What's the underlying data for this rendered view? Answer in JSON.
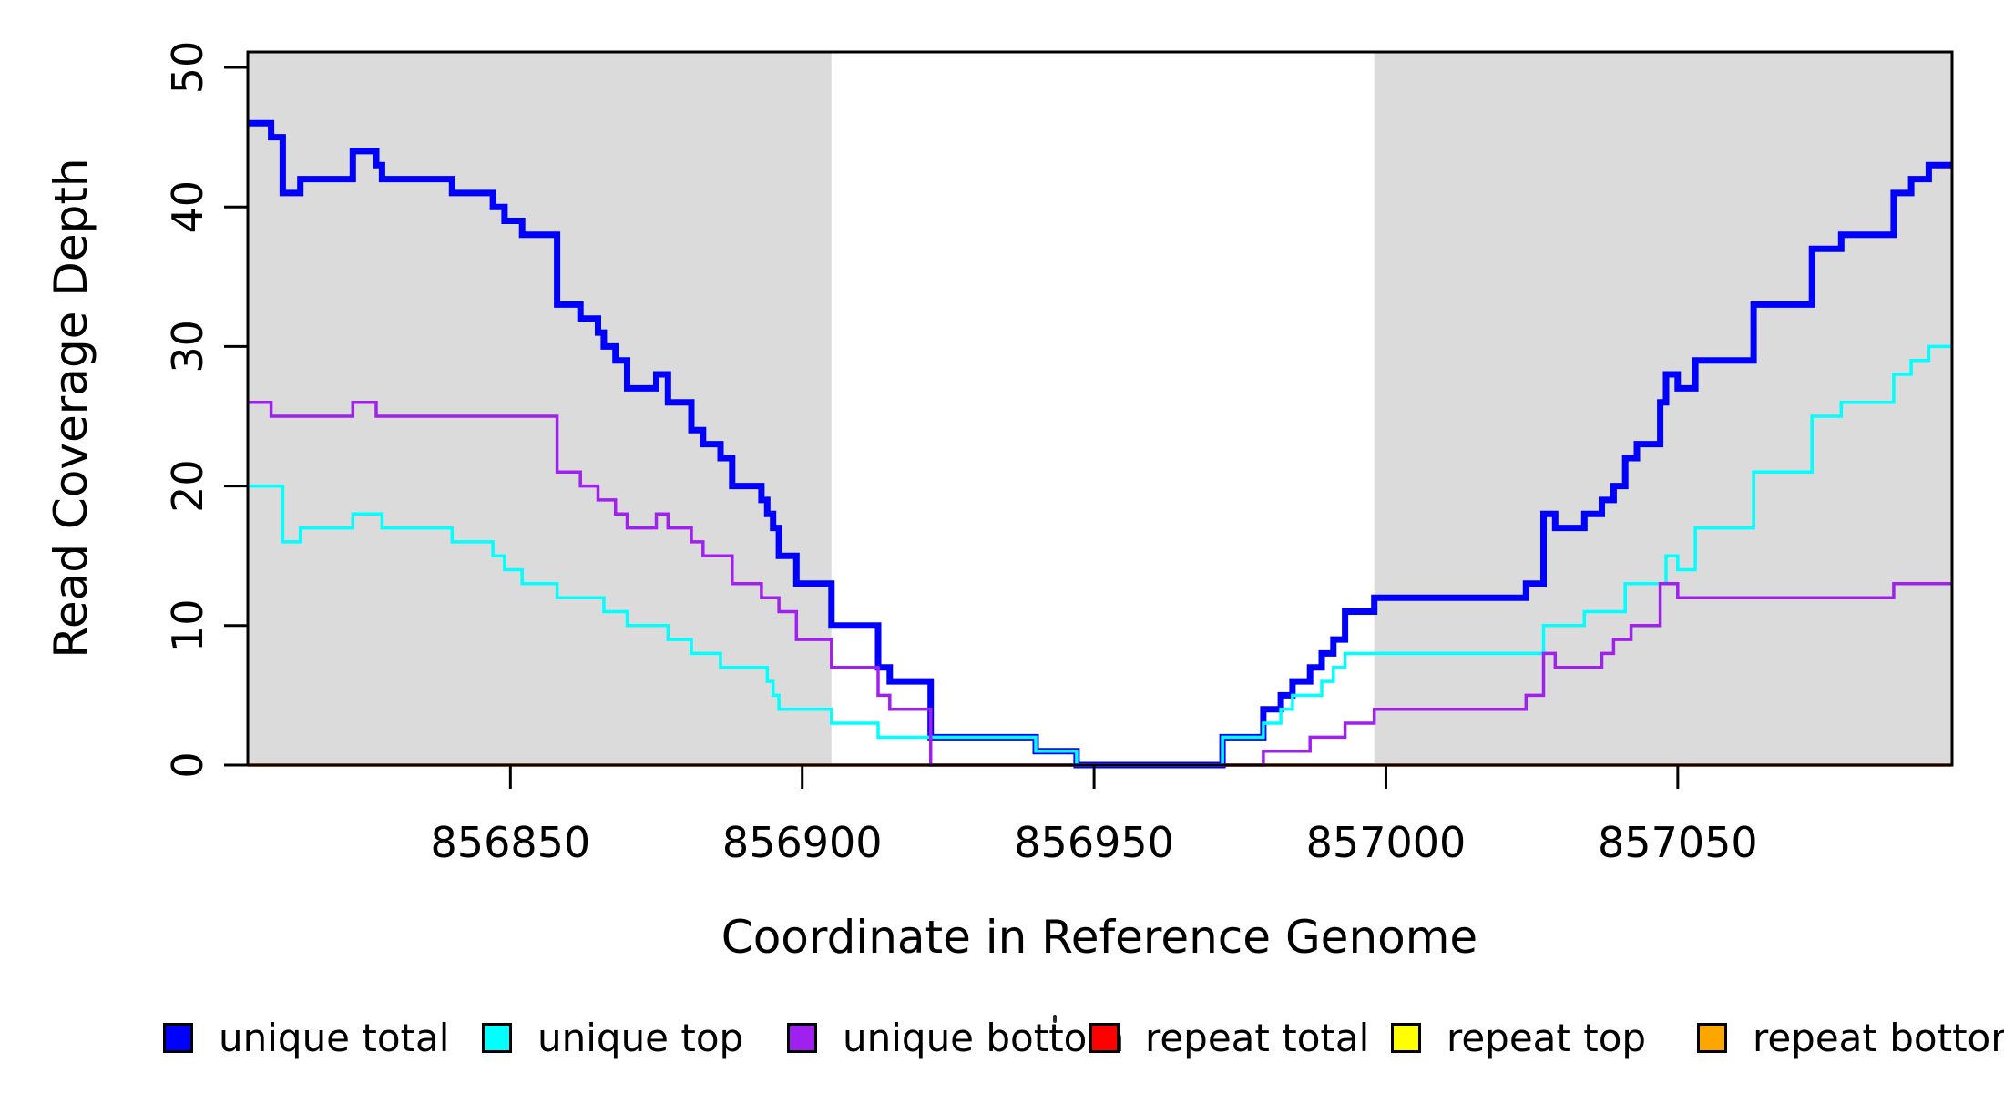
{
  "chart_data": {
    "type": "line",
    "line_style": "step",
    "title": "",
    "xlabel": "Coordinate in Reference Genome",
    "ylabel": "Read Coverage Depth",
    "xlim": [
      856805,
      857097
    ],
    "ylim": [
      0,
      51
    ],
    "grid": false,
    "legend_position": "bottom",
    "background_color": "#ffffff",
    "shaded_region_color": "#DBDBDB",
    "shaded_regions": [
      {
        "from": 856805,
        "to": 856905
      },
      {
        "from": 856998,
        "to": 857097
      }
    ],
    "x_ticks": [
      856850,
      856900,
      856950,
      857000,
      857050
    ],
    "x_tick_labels": [
      "856850",
      "856900",
      "856950",
      "857000",
      "857050"
    ],
    "y_ticks": [
      0,
      10,
      20,
      30,
      40,
      50
    ],
    "y_tick_labels": [
      "0",
      "10",
      "20",
      "30",
      "40",
      "50"
    ],
    "series": [
      {
        "name": "repeat total",
        "color": "#FF0000",
        "width": 3,
        "points": [
          [
            856805,
            0
          ]
        ]
      },
      {
        "name": "repeat top",
        "color": "#FFFF00",
        "width": 3,
        "points": [
          [
            856805,
            0
          ]
        ]
      },
      {
        "name": "repeat bottom",
        "color": "#FFA500",
        "width": 4,
        "points": [
          [
            856805,
            0
          ]
        ]
      },
      {
        "name": "unique total",
        "color": "#0000FF",
        "width": 7,
        "points": [
          [
            856805,
            46
          ],
          [
            856809,
            45
          ],
          [
            856811,
            41
          ],
          [
            856814,
            42
          ],
          [
            856823,
            44
          ],
          [
            856827,
            43
          ],
          [
            856828,
            42
          ],
          [
            856840,
            41
          ],
          [
            856847,
            40
          ],
          [
            856849,
            39
          ],
          [
            856852,
            38
          ],
          [
            856858,
            33
          ],
          [
            856862,
            32
          ],
          [
            856865,
            31
          ],
          [
            856866,
            30
          ],
          [
            856868,
            29
          ],
          [
            856870,
            27
          ],
          [
            856875,
            28
          ],
          [
            856877,
            26
          ],
          [
            856881,
            24
          ],
          [
            856883,
            23
          ],
          [
            856886,
            22
          ],
          [
            856888,
            20
          ],
          [
            856893,
            19
          ],
          [
            856894,
            18
          ],
          [
            856895,
            17
          ],
          [
            856896,
            15
          ],
          [
            856899,
            13
          ],
          [
            856905,
            10
          ],
          [
            856913,
            7
          ],
          [
            856915,
            6
          ],
          [
            856922,
            2
          ],
          [
            856940,
            1
          ],
          [
            856947,
            0
          ],
          [
            856972,
            2
          ],
          [
            856979,
            4
          ],
          [
            856982,
            5
          ],
          [
            856984,
            6
          ],
          [
            856987,
            7
          ],
          [
            856989,
            8
          ],
          [
            856991,
            9
          ],
          [
            856993,
            11
          ],
          [
            856998,
            12
          ],
          [
            857024,
            13
          ],
          [
            857027,
            18
          ],
          [
            857029,
            17
          ],
          [
            857034,
            18
          ],
          [
            857037,
            19
          ],
          [
            857039,
            20
          ],
          [
            857041,
            22
          ],
          [
            857043,
            23
          ],
          [
            857047,
            26
          ],
          [
            857048,
            28
          ],
          [
            857050,
            27
          ],
          [
            857053,
            29
          ],
          [
            857063,
            33
          ],
          [
            857073,
            37
          ],
          [
            857078,
            38
          ],
          [
            857087,
            41
          ],
          [
            857090,
            42
          ],
          [
            857093,
            43
          ]
        ]
      },
      {
        "name": "unique top",
        "color": "#00FFFF",
        "width": 3.5,
        "points": [
          [
            856805,
            20
          ],
          [
            856811,
            16
          ],
          [
            856814,
            17
          ],
          [
            856823,
            18
          ],
          [
            856828,
            17
          ],
          [
            856840,
            16
          ],
          [
            856847,
            15
          ],
          [
            856849,
            14
          ],
          [
            856852,
            13
          ],
          [
            856858,
            12
          ],
          [
            856866,
            11
          ],
          [
            856870,
            10
          ],
          [
            856877,
            9
          ],
          [
            856881,
            8
          ],
          [
            856886,
            7
          ],
          [
            856894,
            6
          ],
          [
            856895,
            5
          ],
          [
            856896,
            4
          ],
          [
            856905,
            3
          ],
          [
            856913,
            2
          ],
          [
            856940,
            1
          ],
          [
            856947,
            0
          ],
          [
            856972,
            2
          ],
          [
            856979,
            3
          ],
          [
            856982,
            4
          ],
          [
            856984,
            5
          ],
          [
            856989,
            6
          ],
          [
            856991,
            7
          ],
          [
            856993,
            8
          ],
          [
            857027,
            10
          ],
          [
            857034,
            11
          ],
          [
            857041,
            13
          ],
          [
            857048,
            15
          ],
          [
            857050,
            14
          ],
          [
            857053,
            17
          ],
          [
            857063,
            21
          ],
          [
            857073,
            25
          ],
          [
            857078,
            26
          ],
          [
            857087,
            28
          ],
          [
            857090,
            29
          ],
          [
            857093,
            30
          ]
        ]
      },
      {
        "name": "unique bottom",
        "color": "#A020F0",
        "width": 3.5,
        "points": [
          [
            856805,
            26
          ],
          [
            856809,
            25
          ],
          [
            856823,
            26
          ],
          [
            856827,
            25
          ],
          [
            856858,
            21
          ],
          [
            856862,
            20
          ],
          [
            856865,
            19
          ],
          [
            856868,
            18
          ],
          [
            856870,
            17
          ],
          [
            856875,
            18
          ],
          [
            856877,
            17
          ],
          [
            856881,
            16
          ],
          [
            856883,
            15
          ],
          [
            856888,
            13
          ],
          [
            856893,
            12
          ],
          [
            856896,
            11
          ],
          [
            856899,
            9
          ],
          [
            856905,
            7
          ],
          [
            856913,
            5
          ],
          [
            856915,
            4
          ],
          [
            856922,
            0
          ],
          [
            856979,
            1
          ],
          [
            856987,
            2
          ],
          [
            856993,
            3
          ],
          [
            856998,
            4
          ],
          [
            857024,
            5
          ],
          [
            857027,
            8
          ],
          [
            857029,
            7
          ],
          [
            857037,
            8
          ],
          [
            857039,
            9
          ],
          [
            857042,
            10
          ],
          [
            857047,
            13
          ],
          [
            857050,
            12
          ],
          [
            857087,
            13
          ]
        ]
      }
    ]
  },
  "legend": {
    "items": [
      {
        "label": "unique total",
        "color": "#0000FF"
      },
      {
        "label": "unique top",
        "color": "#00FFFF"
      },
      {
        "label": "unique bottom",
        "color": "#A020F0"
      },
      {
        "label": "repeat total",
        "color": "#FF0000"
      },
      {
        "label": "repeat top",
        "color": "#FFFF00"
      },
      {
        "label": "repeat bottom",
        "color": "#FFA500"
      }
    ]
  }
}
